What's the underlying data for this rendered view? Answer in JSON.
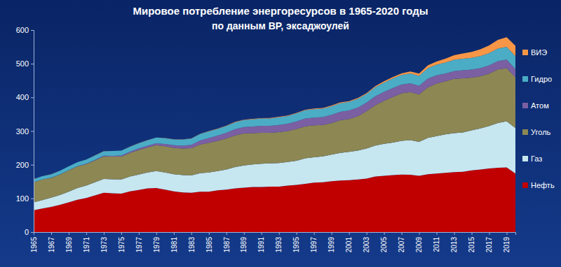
{
  "chart_data": {
    "type": "area",
    "title": "Мировое потребление энергоресурсов в 1965-2020 годы",
    "subtitle": "по данным BP, эксаджоулей",
    "stacked": true,
    "grid": false,
    "legend": "right",
    "x": [
      1965,
      1966,
      1967,
      1968,
      1969,
      1970,
      1971,
      1972,
      1973,
      1974,
      1975,
      1976,
      1977,
      1978,
      1979,
      1980,
      1981,
      1982,
      1983,
      1984,
      1985,
      1986,
      1987,
      1988,
      1989,
      1990,
      1991,
      1992,
      1993,
      1994,
      1995,
      1996,
      1997,
      1998,
      1999,
      2000,
      2001,
      2002,
      2003,
      2004,
      2005,
      2006,
      2007,
      2008,
      2009,
      2010,
      2011,
      2012,
      2013,
      2014,
      2015,
      2016,
      2017,
      2018,
      2019,
      2020
    ],
    "xlim": [
      1965,
      2020
    ],
    "xticks": [
      1965,
      1967,
      1969,
      1971,
      1973,
      1975,
      1977,
      1979,
      1981,
      1983,
      1985,
      1987,
      1989,
      1991,
      1993,
      1995,
      1997,
      1999,
      2001,
      2003,
      2005,
      2007,
      2009,
      2011,
      2013,
      2015,
      2017,
      2019
    ],
    "ylim": [
      0,
      600
    ],
    "yticks": [
      0,
      100,
      200,
      300,
      400,
      500,
      600
    ],
    "series": [
      {
        "name": "Нефть",
        "color": "#c00000",
        "values": [
          65,
          70,
          75,
          81,
          88,
          96,
          101,
          109,
          117,
          115,
          114,
          121,
          125,
          130,
          131,
          126,
          121,
          118,
          117,
          120,
          120,
          124,
          126,
          130,
          132,
          134,
          134,
          135,
          135,
          138,
          140,
          143,
          147,
          148,
          151,
          153,
          154,
          156,
          159,
          165,
          167,
          169,
          171,
          170,
          167,
          172,
          174,
          176,
          178,
          179,
          183,
          186,
          189,
          191,
          192,
          174
        ]
      },
      {
        "name": "Газ",
        "color": "#c6e6f0",
        "values": [
          23,
          25,
          27,
          29,
          32,
          35,
          37,
          39,
          41,
          42,
          42,
          44,
          46,
          47,
          50,
          51,
          51,
          51,
          51,
          55,
          57,
          57,
          60,
          63,
          66,
          67,
          69,
          69,
          70,
          70,
          72,
          76,
          75,
          77,
          79,
          82,
          84,
          86,
          89,
          92,
          95,
          97,
          100,
          103,
          101,
          108,
          111,
          114,
          116,
          117,
          119,
          122,
          126,
          133,
          137,
          135
        ]
      },
      {
        "name": "Уголь",
        "color": "#8c8753",
        "values": [
          60,
          61,
          59,
          61,
          63,
          64,
          64,
          65,
          67,
          67,
          68,
          70,
          73,
          74,
          77,
          78,
          78,
          79,
          81,
          85,
          88,
          90,
          92,
          94,
          95,
          93,
          92,
          91,
          92,
          92,
          94,
          95,
          95,
          93,
          94,
          97,
          98,
          102,
          111,
          120,
          128,
          135,
          141,
          143,
          141,
          150,
          156,
          158,
          161,
          161,
          157,
          155,
          156,
          159,
          158,
          151
        ]
      },
      {
        "name": "Атом",
        "color": "#7b5fa3",
        "values": [
          0.2,
          0.3,
          0.4,
          0.5,
          0.6,
          0.8,
          1.1,
          1.5,
          1.9,
          2.5,
          3.4,
          3.9,
          4.8,
          5.6,
          5.9,
          6.6,
          7.8,
          8.6,
          10,
          12,
          14.4,
          15.5,
          17,
          18.5,
          19,
          19.5,
          20.4,
          20.6,
          21.3,
          21.8,
          22.5,
          23.3,
          23.2,
          23.6,
          24.3,
          25,
          25.5,
          25.8,
          25.4,
          26.4,
          26.4,
          26.7,
          25.9,
          25.6,
          25.3,
          25.9,
          24.6,
          22.7,
          22.9,
          23.4,
          23.6,
          23.9,
          24.1,
          24.6,
          25.3,
          24
        ]
      },
      {
        "name": "Гидро",
        "color": "#4bacc6",
        "values": [
          9.2,
          9.8,
          10.1,
          10.6,
          11.3,
          11.8,
          12.3,
          12.8,
          13,
          14.2,
          14.4,
          14.6,
          15,
          16,
          16.7,
          17.2,
          17.4,
          17.9,
          18.6,
          19.1,
          19.5,
          19.8,
          20.1,
          20.7,
          20.6,
          21.3,
          21.8,
          21.7,
          22.8,
          23,
          24,
          24.3,
          24.7,
          24.8,
          25.1,
          25.6,
          25.1,
          25.5,
          25.5,
          26.8,
          27.6,
          28.4,
          28.6,
          29.8,
          29.7,
          31.2,
          31.6,
          33,
          34,
          34.7,
          34.8,
          36,
          36.4,
          37.3,
          37.7,
          38.2
        ]
      },
      {
        "name": "ВИЭ",
        "color": "#f79646",
        "values": [
          0.2,
          0.2,
          0.2,
          0.2,
          0.2,
          0.2,
          0.2,
          0.3,
          0.3,
          0.3,
          0.3,
          0.3,
          0.3,
          0.4,
          0.4,
          0.4,
          0.5,
          0.6,
          0.7,
          0.8,
          0.9,
          1,
          1,
          1.1,
          1.2,
          1.3,
          1.4,
          1.5,
          1.5,
          1.6,
          1.7,
          1.8,
          1.9,
          2,
          2.2,
          2.3,
          2.4,
          2.7,
          2.9,
          3.3,
          3.7,
          4.2,
          4.9,
          5.8,
          6.7,
          8,
          9.6,
          11.3,
          13.3,
          15.2,
          17.5,
          19.8,
          23,
          26,
          28.9,
          31
        ]
      }
    ]
  }
}
